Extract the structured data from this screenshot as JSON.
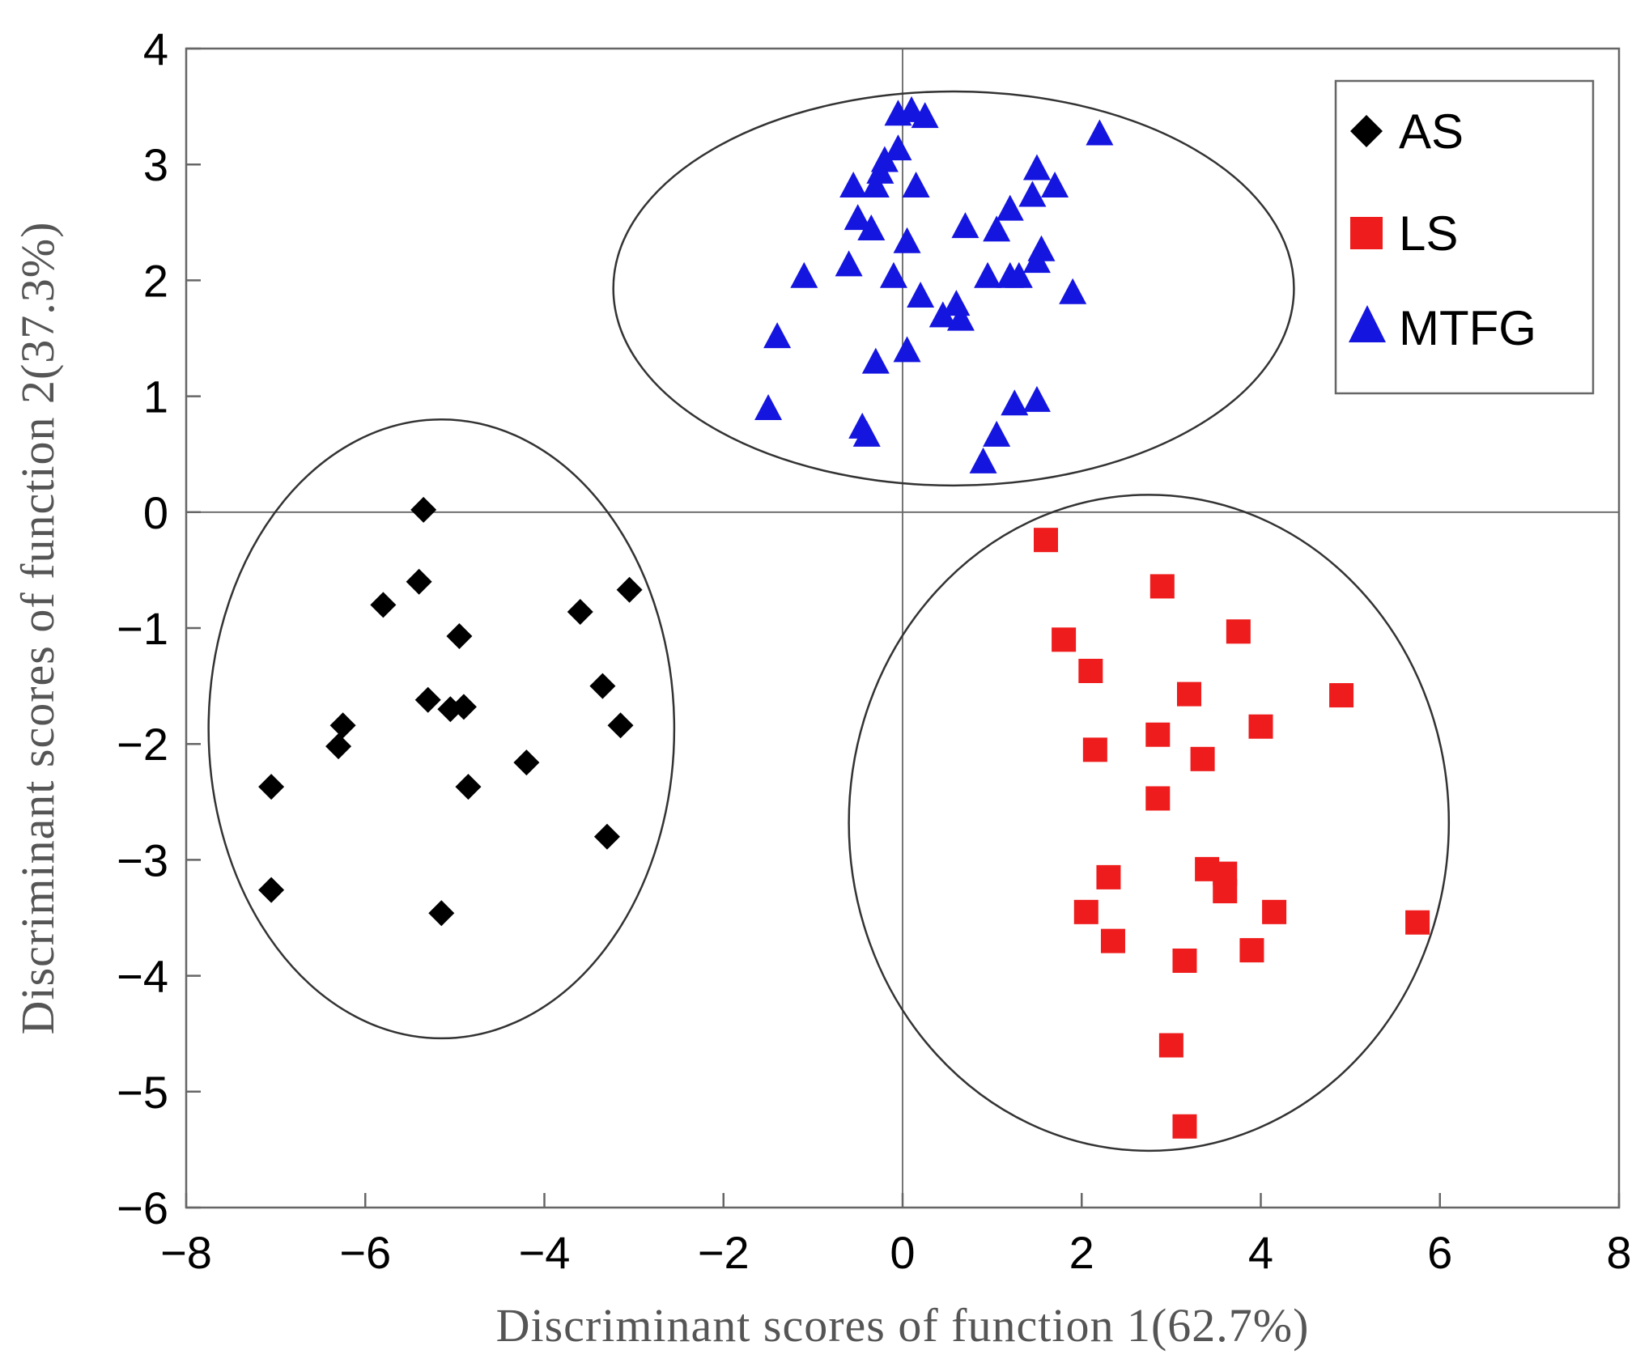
{
  "chart_data": {
    "type": "scatter",
    "title": "",
    "xlabel": "Discriminant scores of function 1(62.7%)",
    "ylabel": "Discriminant scores of function 2(37.3%)",
    "xlim": [
      -8,
      8
    ],
    "ylim": [
      -6,
      4
    ],
    "xticks": [
      -8,
      -6,
      -4,
      -2,
      0,
      2,
      4,
      6,
      8
    ],
    "yticks": [
      4,
      3,
      2,
      1,
      0,
      -1,
      -2,
      -3,
      -4,
      -5,
      -6
    ],
    "xtick_labels": [
      "−8",
      "−6",
      "−4",
      "−2",
      "0",
      "2",
      "4",
      "6",
      "8"
    ],
    "ytick_labels": [
      "4",
      "3",
      "2",
      "1",
      "0",
      "−1",
      "−2",
      "−3",
      "−4",
      "−5",
      "−6"
    ],
    "grid": false,
    "zero_lines": true,
    "legend_position": "top-right",
    "series": [
      {
        "name": "AS",
        "marker": "diamond",
        "color": "#000000",
        "points": [
          [
            -5.35,
            0.02
          ],
          [
            -5.4,
            -0.6
          ],
          [
            -5.8,
            -0.8
          ],
          [
            -3.05,
            -0.67
          ],
          [
            -3.6,
            -0.86
          ],
          [
            -4.95,
            -1.07
          ],
          [
            -3.35,
            -1.5
          ],
          [
            -5.3,
            -1.62
          ],
          [
            -5.05,
            -1.7
          ],
          [
            -4.9,
            -1.68
          ],
          [
            -6.25,
            -1.84
          ],
          [
            -3.15,
            -1.84
          ],
          [
            -6.3,
            -2.02
          ],
          [
            -4.2,
            -2.16
          ],
          [
            -7.05,
            -2.37
          ],
          [
            -4.85,
            -2.37
          ],
          [
            -3.3,
            -2.8
          ],
          [
            -7.05,
            -3.26
          ],
          [
            -5.15,
            -3.46
          ]
        ]
      },
      {
        "name": "LS",
        "marker": "square",
        "color": "#ee1c1c",
        "points": [
          [
            1.6,
            -0.24
          ],
          [
            2.9,
            -0.64
          ],
          [
            1.8,
            -1.1
          ],
          [
            3.75,
            -1.03
          ],
          [
            2.1,
            -1.37
          ],
          [
            3.2,
            -1.57
          ],
          [
            4.9,
            -1.58
          ],
          [
            2.85,
            -1.92
          ],
          [
            4.0,
            -1.85
          ],
          [
            2.15,
            -2.05
          ],
          [
            3.35,
            -2.13
          ],
          [
            2.85,
            -2.47
          ],
          [
            3.4,
            -3.08
          ],
          [
            3.6,
            -3.12
          ],
          [
            3.6,
            -3.27
          ],
          [
            2.3,
            -3.15
          ],
          [
            2.05,
            -3.45
          ],
          [
            4.15,
            -3.45
          ],
          [
            5.75,
            -3.54
          ],
          [
            2.35,
            -3.7
          ],
          [
            3.9,
            -3.78
          ],
          [
            3.15,
            -3.87
          ],
          [
            3.0,
            -4.6
          ],
          [
            3.15,
            -5.3
          ]
        ]
      },
      {
        "name": "MTFG",
        "marker": "triangle",
        "color": "#1515e0",
        "points": [
          [
            -0.05,
            3.42
          ],
          [
            0.1,
            3.45
          ],
          [
            0.25,
            3.4
          ],
          [
            2.2,
            3.25
          ],
          [
            -0.05,
            3.12
          ],
          [
            -0.2,
            3.02
          ],
          [
            -0.25,
            2.92
          ],
          [
            1.5,
            2.95
          ],
          [
            -0.55,
            2.8
          ],
          [
            -0.3,
            2.8
          ],
          [
            0.15,
            2.8
          ],
          [
            1.45,
            2.72
          ],
          [
            1.7,
            2.8
          ],
          [
            1.2,
            2.6
          ],
          [
            -0.5,
            2.52
          ],
          [
            -0.35,
            2.43
          ],
          [
            0.7,
            2.45
          ],
          [
            1.05,
            2.42
          ],
          [
            0.05,
            2.32
          ],
          [
            1.55,
            2.25
          ],
          [
            1.5,
            2.15
          ],
          [
            -1.1,
            2.02
          ],
          [
            -0.6,
            2.12
          ],
          [
            -0.1,
            2.02
          ],
          [
            0.95,
            2.02
          ],
          [
            1.2,
            2.02
          ],
          [
            1.3,
            2.02
          ],
          [
            0.2,
            1.85
          ],
          [
            1.9,
            1.88
          ],
          [
            0.6,
            1.78
          ],
          [
            0.45,
            1.68
          ],
          [
            0.65,
            1.65
          ],
          [
            -1.4,
            1.5
          ],
          [
            0.05,
            1.38
          ],
          [
            -0.3,
            1.28
          ],
          [
            -1.5,
            0.88
          ],
          [
            1.25,
            0.92
          ],
          [
            1.5,
            0.95
          ],
          [
            -0.45,
            0.72
          ],
          [
            -0.4,
            0.65
          ],
          [
            1.05,
            0.65
          ],
          [
            0.9,
            0.42
          ]
        ]
      }
    ],
    "ellipses": [
      {
        "cx": -5.15,
        "cy": -1.87,
        "rx": 2.6,
        "ry": 2.67
      },
      {
        "cx": 0.57,
        "cy": 1.93,
        "rx": 3.8,
        "ry": 1.7
      },
      {
        "cx": 2.75,
        "cy": -2.68,
        "rx": 3.35,
        "ry": 2.83
      }
    ]
  }
}
